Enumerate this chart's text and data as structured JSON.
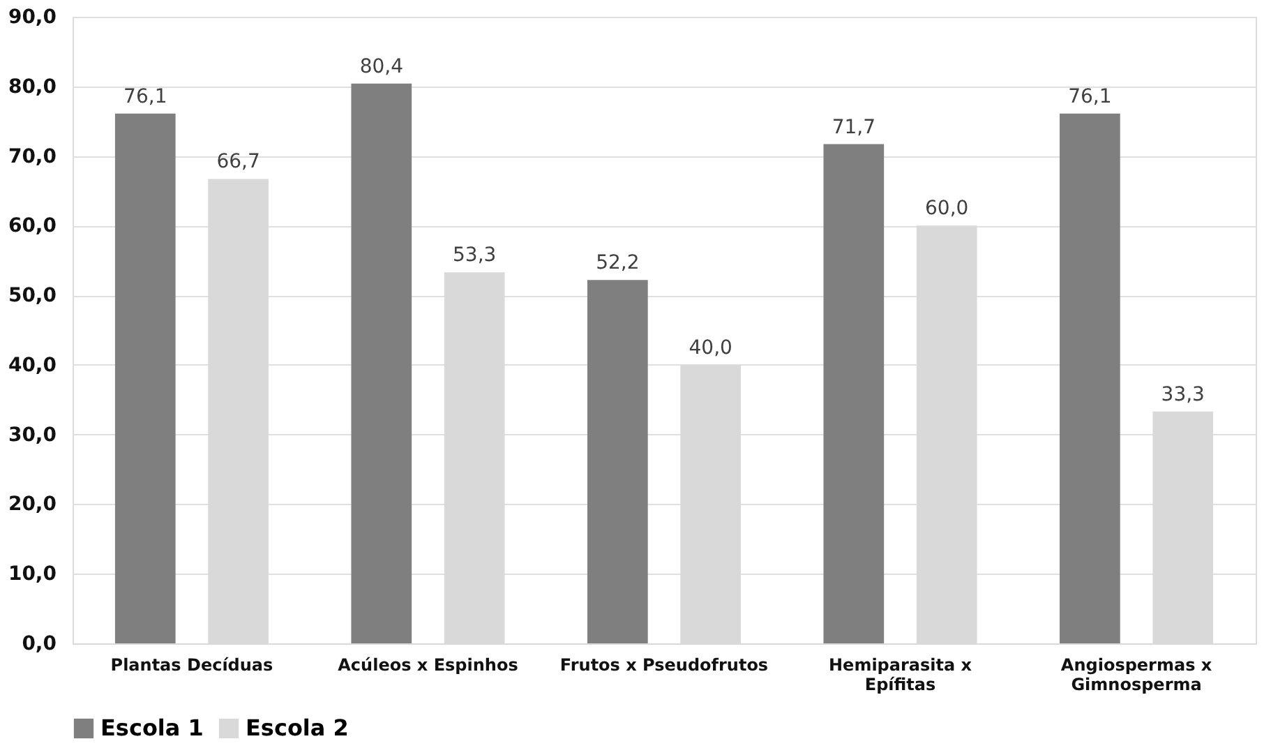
{
  "chart_data": {
    "type": "bar",
    "categories": [
      "Plantas Decíduas",
      "Acúleos x Espinhos",
      "Frutos  x Pseudofrutos",
      "Hemiparasita x Epífitas",
      "Angiospermas x Gimnosperma"
    ],
    "series": [
      {
        "name": "Escola 1",
        "color": "#7f7f7f",
        "values": [
          76.1,
          80.4,
          52.2,
          71.7,
          76.1
        ],
        "value_labels": [
          "76,1",
          "80,4",
          "52,2",
          "71,7",
          "76,1"
        ]
      },
      {
        "name": "Escola 2",
        "color": "#d9d9d9",
        "values": [
          66.7,
          53.3,
          40.0,
          60.0,
          33.3
        ],
        "value_labels": [
          "66,7",
          "53,3",
          "40,0",
          "60,0",
          "33,3"
        ]
      }
    ],
    "ylim": [
      0,
      90
    ],
    "yticks": [
      {
        "value": 0,
        "label": "0,0"
      },
      {
        "value": 10,
        "label": "10,0"
      },
      {
        "value": 20,
        "label": "20,0"
      },
      {
        "value": 30,
        "label": "30,0"
      },
      {
        "value": 40,
        "label": "40,0"
      },
      {
        "value": 50,
        "label": "50,0"
      },
      {
        "value": 60,
        "label": "60,0"
      },
      {
        "value": 70,
        "label": "70,0"
      },
      {
        "value": 80,
        "label": "80,0"
      },
      {
        "value": 90,
        "label": "90,0"
      }
    ],
    "grid": "y",
    "legend": "bottom"
  }
}
